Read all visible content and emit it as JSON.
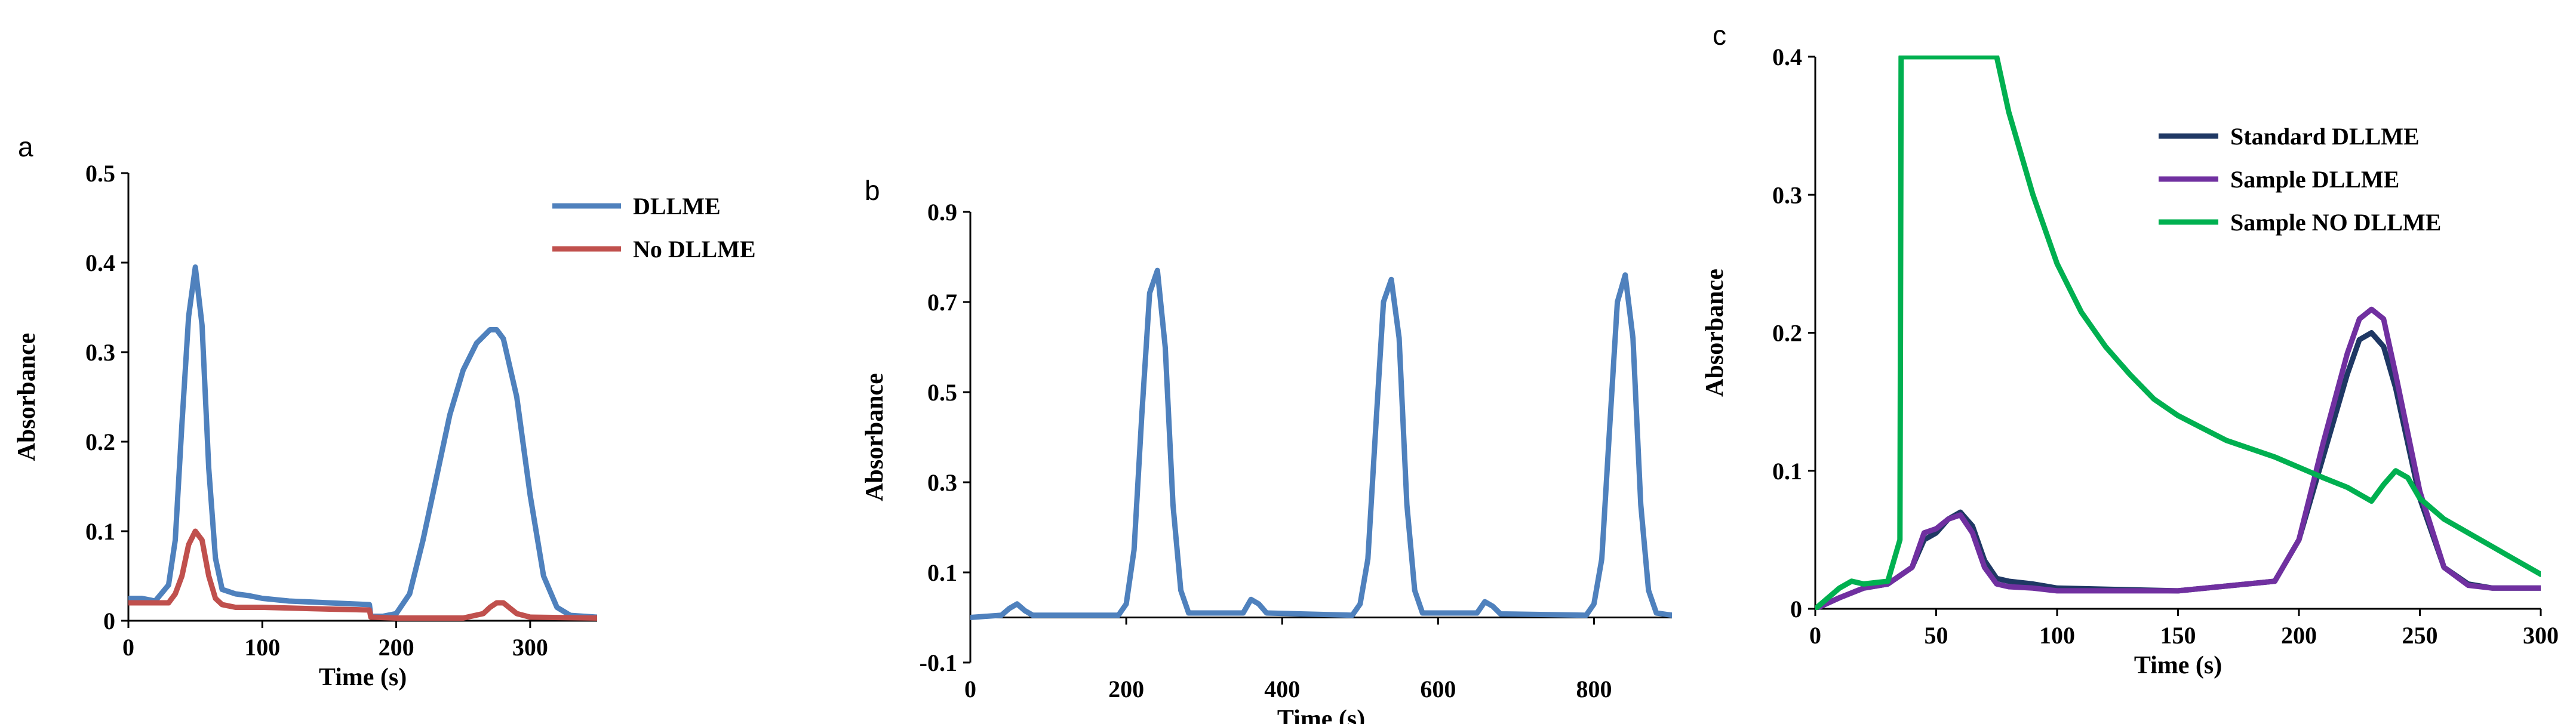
{
  "chart_data": [
    {
      "panel_letter": "a",
      "type": "line",
      "xlabel": "Time (s)",
      "ylabel": "Absorbance",
      "xlim": [
        0,
        350
      ],
      "ylim": [
        0,
        0.5
      ],
      "xticks": [
        0,
        100,
        200,
        300
      ],
      "yticks": [
        0,
        0.1,
        0.2,
        0.3,
        0.4,
        0.5
      ],
      "ytick_labels": [
        "0",
        "0.1",
        "0.2",
        "0.3",
        "0.4",
        "0.5"
      ],
      "legend_position": "top-right",
      "series": [
        {
          "name": "DLLME",
          "color": "#4f81bd",
          "x": [
            0,
            10,
            20,
            30,
            35,
            40,
            45,
            50,
            55,
            60,
            65,
            70,
            80,
            90,
            100,
            120,
            150,
            180,
            181,
            190,
            200,
            210,
            220,
            230,
            240,
            250,
            260,
            270,
            275,
            280,
            290,
            300,
            310,
            320,
            330,
            350
          ],
          "y": [
            0.025,
            0.025,
            0.022,
            0.04,
            0.09,
            0.22,
            0.34,
            0.395,
            0.33,
            0.17,
            0.07,
            0.035,
            0.03,
            0.028,
            0.025,
            0.022,
            0.02,
            0.018,
            0.005,
            0.005,
            0.008,
            0.03,
            0.09,
            0.16,
            0.23,
            0.28,
            0.31,
            0.325,
            0.325,
            0.315,
            0.25,
            0.14,
            0.05,
            0.015,
            0.006,
            0.004
          ]
        },
        {
          "name": "No DLLME",
          "color": "#c0504d",
          "x": [
            0,
            10,
            20,
            30,
            35,
            40,
            45,
            50,
            55,
            60,
            65,
            70,
            80,
            100,
            150,
            180,
            181,
            200,
            250,
            265,
            270,
            275,
            280,
            285,
            290,
            300,
            350
          ],
          "y": [
            0.02,
            0.02,
            0.02,
            0.02,
            0.03,
            0.05,
            0.085,
            0.1,
            0.09,
            0.05,
            0.025,
            0.018,
            0.015,
            0.015,
            0.013,
            0.012,
            0.004,
            0.003,
            0.003,
            0.008,
            0.015,
            0.02,
            0.02,
            0.014,
            0.008,
            0.004,
            0.003
          ]
        }
      ]
    },
    {
      "panel_letter": "b",
      "type": "line",
      "xlabel": "Time (s)",
      "ylabel": "Absorbance",
      "xlim": [
        0,
        900
      ],
      "ylim": [
        -0.1,
        0.9
      ],
      "xticks": [
        0,
        200,
        400,
        600,
        800
      ],
      "yticks": [
        -0.1,
        0.1,
        0.3,
        0.5,
        0.7,
        0.9
      ],
      "ytick_labels": [
        "-0.1",
        "0.1",
        "0.3",
        "0.5",
        "0.7",
        "0.9"
      ],
      "series": [
        {
          "name": "",
          "color": "#4f81bd",
          "x": [
            0,
            40,
            50,
            60,
            70,
            80,
            190,
            200,
            210,
            220,
            230,
            240,
            250,
            260,
            270,
            280,
            350,
            360,
            370,
            380,
            490,
            500,
            510,
            520,
            530,
            540,
            550,
            560,
            570,
            580,
            650,
            660,
            670,
            680,
            790,
            800,
            810,
            820,
            830,
            840,
            850,
            860,
            870,
            880,
            900
          ],
          "y": [
            0.0,
            0.005,
            0.02,
            0.03,
            0.015,
            0.005,
            0.005,
            0.03,
            0.15,
            0.45,
            0.72,
            0.77,
            0.6,
            0.25,
            0.06,
            0.01,
            0.01,
            0.04,
            0.03,
            0.01,
            0.005,
            0.03,
            0.13,
            0.42,
            0.7,
            0.75,
            0.62,
            0.25,
            0.06,
            0.01,
            0.01,
            0.035,
            0.025,
            0.008,
            0.005,
            0.03,
            0.13,
            0.42,
            0.7,
            0.76,
            0.62,
            0.25,
            0.06,
            0.01,
            0.005
          ]
        }
      ]
    },
    {
      "panel_letter": "c",
      "type": "line",
      "xlabel": "Time (s)",
      "ylabel": "Absorbance",
      "xlim": [
        0,
        300
      ],
      "ylim": [
        0,
        0.4
      ],
      "xticks": [
        0,
        50,
        100,
        150,
        200,
        250,
        300
      ],
      "yticks": [
        0,
        0.1,
        0.2,
        0.3,
        0.4
      ],
      "ytick_labels": [
        "0",
        "0.1",
        "0.2",
        "0.3",
        "0.4"
      ],
      "legend_position": "top-right",
      "series": [
        {
          "name": "Standard DLLME",
          "color": "#1f3864",
          "x": [
            0,
            10,
            20,
            30,
            40,
            45,
            50,
            55,
            60,
            65,
            70,
            75,
            80,
            90,
            100,
            150,
            190,
            200,
            210,
            220,
            225,
            230,
            235,
            240,
            250,
            260,
            270,
            280,
            300
          ],
          "y": [
            0.0,
            0.008,
            0.015,
            0.018,
            0.03,
            0.05,
            0.055,
            0.065,
            0.07,
            0.06,
            0.035,
            0.022,
            0.02,
            0.018,
            0.015,
            0.013,
            0.02,
            0.05,
            0.11,
            0.17,
            0.195,
            0.2,
            0.19,
            0.16,
            0.08,
            0.03,
            0.018,
            0.015,
            0.015
          ]
        },
        {
          "name": "Sample DLLME",
          "color": "#7030a0",
          "x": [
            0,
            10,
            20,
            30,
            40,
            45,
            50,
            55,
            60,
            65,
            70,
            75,
            80,
            90,
            100,
            150,
            190,
            200,
            210,
            220,
            225,
            230,
            235,
            240,
            250,
            260,
            270,
            280,
            300
          ],
          "y": [
            0.0,
            0.008,
            0.015,
            0.018,
            0.03,
            0.055,
            0.058,
            0.065,
            0.068,
            0.055,
            0.03,
            0.018,
            0.016,
            0.015,
            0.013,
            0.013,
            0.02,
            0.05,
            0.12,
            0.185,
            0.21,
            0.217,
            0.21,
            0.17,
            0.085,
            0.03,
            0.017,
            0.015,
            0.015
          ]
        },
        {
          "name": "Sample NO DLLME",
          "color": "#00b050",
          "x": [
            0,
            10,
            15,
            20,
            30,
            35,
            35.5,
            37,
            75,
            80,
            90,
            100,
            110,
            120,
            130,
            140,
            150,
            170,
            190,
            210,
            220,
            230,
            235,
            240,
            245,
            250,
            260,
            270,
            280,
            290,
            300
          ],
          "y": [
            0.0,
            0.015,
            0.02,
            0.018,
            0.02,
            0.05,
            0.4,
            0.4,
            0.4,
            0.36,
            0.3,
            0.25,
            0.215,
            0.19,
            0.17,
            0.152,
            0.14,
            0.122,
            0.11,
            0.095,
            0.088,
            0.078,
            0.09,
            0.1,
            0.095,
            0.08,
            0.065,
            0.055,
            0.045,
            0.035,
            0.025
          ]
        }
      ]
    }
  ]
}
